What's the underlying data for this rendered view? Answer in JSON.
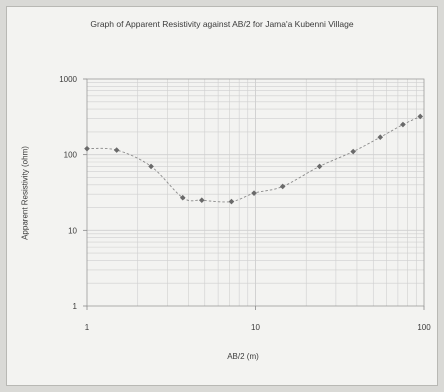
{
  "chart_data": {
    "type": "scatter",
    "title": "Graph of Apparent Resistivity  against AB/2  for Jama'a Kubenni Village",
    "xlabel": "AB/2 (m)",
    "ylabel": "Apparent Resistivity (ohm)",
    "x_scale": "log",
    "y_scale": "log",
    "xlim": [
      1,
      100
    ],
    "ylim": [
      1,
      1000
    ],
    "x_ticks": [
      "1",
      "10",
      "100"
    ],
    "y_ticks": [
      "1",
      "10",
      "100",
      "1000"
    ],
    "grid": true,
    "series": [
      {
        "points": [
          {
            "x": 1.0,
            "y": 120
          },
          {
            "x": 1.5,
            "y": 115
          },
          {
            "x": 2.4,
            "y": 70
          },
          {
            "x": 3.7,
            "y": 27
          },
          {
            "x": 4.8,
            "y": 25
          },
          {
            "x": 7.2,
            "y": 24
          },
          {
            "x": 9.8,
            "y": 31
          },
          {
            "x": 14.5,
            "y": 38
          },
          {
            "x": 24,
            "y": 70
          },
          {
            "x": 38,
            "y": 110
          },
          {
            "x": 55,
            "y": 170
          },
          {
            "x": 75,
            "y": 250
          },
          {
            "x": 95,
            "y": 320
          }
        ]
      }
    ],
    "colors": {
      "points": "#6a6a6a",
      "curve": "#8a8a8a",
      "grid": "#cfcfcf"
    }
  }
}
